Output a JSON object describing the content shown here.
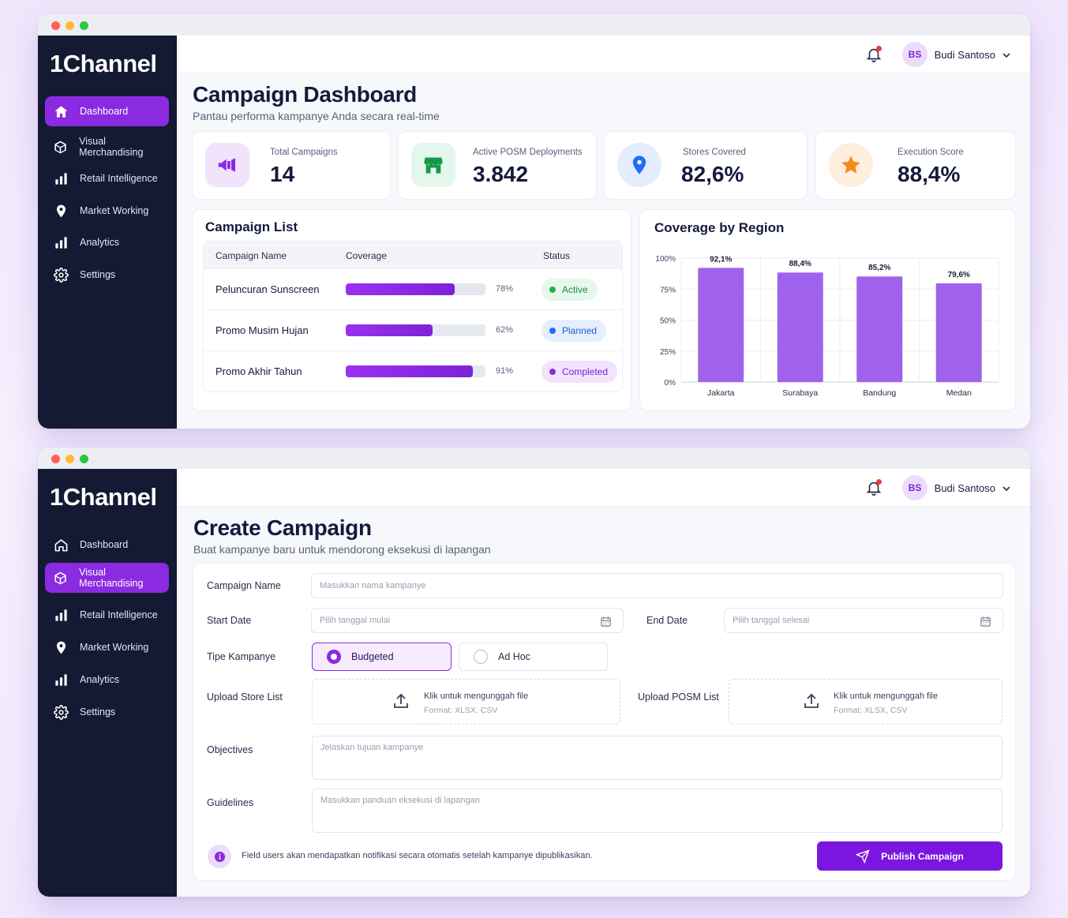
{
  "brand": "1Channel",
  "colors": {
    "accent": "#8a2be2",
    "sidebar": "#141a33",
    "active_green": "#1fae55",
    "planned_blue": "#1e6ef0"
  },
  "user": {
    "initials": "BS",
    "name": "Budi Santoso"
  },
  "nav": {
    "items": [
      {
        "label": "Dashboard",
        "icon": "home-icon"
      },
      {
        "label": "Visual Merchandising",
        "icon": "cube-icon"
      },
      {
        "label": "Retail Intelligence",
        "icon": "bar-chart-icon"
      },
      {
        "label": "Market Working",
        "icon": "map-pin-icon"
      },
      {
        "label": "Analytics",
        "icon": "bar-chart-icon"
      },
      {
        "label": "Settings",
        "icon": "gear-icon"
      }
    ]
  },
  "dashboard": {
    "title": "Campaign Dashboard",
    "subtitle": "Pantau performa kampanye Anda secara real-time",
    "active_nav": "Dashboard",
    "stats": [
      {
        "label": "Total Campaigns",
        "value": "14",
        "icon": "megaphone-icon"
      },
      {
        "label": "Active POSM Deployments",
        "value": "3.842",
        "icon": "store-icon"
      },
      {
        "label": "Stores Covered",
        "value": "82,6%",
        "icon": "location-icon"
      },
      {
        "label": "Execution Score",
        "value": "88,4%",
        "icon": "star-icon"
      }
    ],
    "campaign_list": {
      "title": "Campaign List",
      "columns": {
        "name": "Campaign Name",
        "coverage": "Coverage",
        "status": "Status"
      },
      "rows": [
        {
          "name": "Peluncuran Sunscreen",
          "coverage": 78,
          "coverage_label": "78%",
          "status": "Active"
        },
        {
          "name": "Promo Musim Hujan",
          "coverage": 62,
          "coverage_label": "62%",
          "status": "Planned"
        },
        {
          "name": "Promo Akhir Tahun",
          "coverage": 91,
          "coverage_label": "91%",
          "status": "Completed"
        }
      ]
    },
    "coverage_title": "Coverage by Region"
  },
  "chart_data": {
    "type": "bar",
    "title": "Coverage by Region",
    "categories": [
      "Jakarta",
      "Surabaya",
      "Bandung",
      "Medan"
    ],
    "values": [
      92.1,
      88.4,
      85.2,
      79.6
    ],
    "value_labels": [
      "92,1%",
      "88,4%",
      "85,2%",
      "79,6%"
    ],
    "yticks": [
      "0%",
      "25%",
      "50%",
      "75%",
      "100%"
    ],
    "ylim": [
      0,
      100
    ],
    "grid": true,
    "bar_color": "#a062ec"
  },
  "create": {
    "title": "Create Campaign",
    "subtitle": "Buat kampanye baru untuk mendorong eksekusi di lapangan",
    "active_nav": "Visual Merchandising",
    "labels": {
      "campaign_name": "Campaign Name",
      "start_date": "Start Date",
      "end_date": "End Date",
      "type": "Tipe Kampanye",
      "upload_store": "Upload Store List",
      "upload_posm": "Upload POSM List",
      "objectives": "Objectives",
      "guidelines": "Guidelines"
    },
    "placeholders": {
      "campaign_name": "Masukkan nama kampanye",
      "start_date": "Pilih tanggal mulai",
      "end_date": "Pilih tanggal selesai",
      "objectives": "Jelaskan tujuan kampanye",
      "guidelines": "Masukkan panduan eksekusi di lapangan"
    },
    "type_options": [
      {
        "label": "Budgeted",
        "selected": true
      },
      {
        "label": "Ad Hoc",
        "selected": false
      }
    ],
    "upload": {
      "prompt": "Klik untuk mengunggah file",
      "format": "Format: XLSX, CSV"
    },
    "info": "Field users akan mendapatkan notifikasi secara otomatis setelah kampanye dipublikasikan.",
    "publish_label": "Publish Campaign"
  }
}
